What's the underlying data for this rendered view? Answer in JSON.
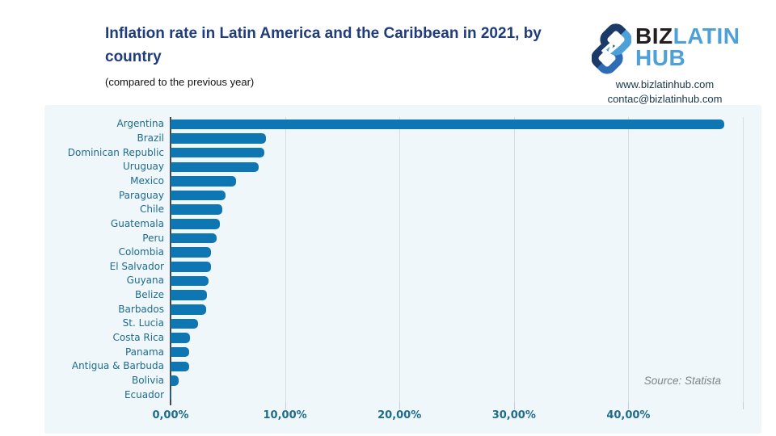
{
  "header": {
    "title": "Inflation rate in Latin America and the Caribbean in 2021, by country",
    "subtitle": "(compared to the previous year)"
  },
  "logo": {
    "brand_part1": "BIZ",
    "brand_part2": "LATIN",
    "brand_part3": "HUB",
    "website": "www.bizlatinhub.com",
    "email": "contac@bizlatinhub.com"
  },
  "chart_data": {
    "type": "bar",
    "orientation": "horizontal",
    "title": "Inflation rate in Latin America and the Caribbean in 2021, by country",
    "subtitle": "(compared to the previous year)",
    "categories": [
      "Argentina",
      "Brazil",
      "Dominican Republic",
      "Uruguay",
      "Mexico",
      "Paraguay",
      "Chile",
      "Guatemala",
      "Peru",
      "Colombia",
      "El Salvador",
      "Guyana",
      "Belize",
      "Barbados",
      "St. Lucia",
      "Costa Rica",
      "Panama",
      "Antigua & Barbuda",
      "Bolivia",
      "Ecuador"
    ],
    "values": [
      48.4,
      8.3,
      8.2,
      7.7,
      5.7,
      4.8,
      4.5,
      4.3,
      4.0,
      3.5,
      3.5,
      3.3,
      3.2,
      3.1,
      2.4,
      1.7,
      1.6,
      1.6,
      0.7,
      0.1
    ],
    "value_suffix": "%",
    "xlabel": "",
    "ylabel": "",
    "xlim": [
      0,
      50
    ],
    "x_ticks": [
      "0,00%",
      "10,00%",
      "20,00%",
      "30,00%",
      "40,00%"
    ],
    "x_tick_values": [
      0,
      10,
      20,
      30,
      40
    ],
    "grid": true,
    "legend": false,
    "source": "Source: Statista",
    "bar_color": "#0f76b4",
    "panel_background": "#eff7fb",
    "label_color": "#1e6b8c",
    "title_color": "#1f3d7c",
    "logo_light_blue": "#4da0d8",
    "logo_navy": "#1b3a68",
    "logo_medium_blue": "#2d6db5"
  }
}
